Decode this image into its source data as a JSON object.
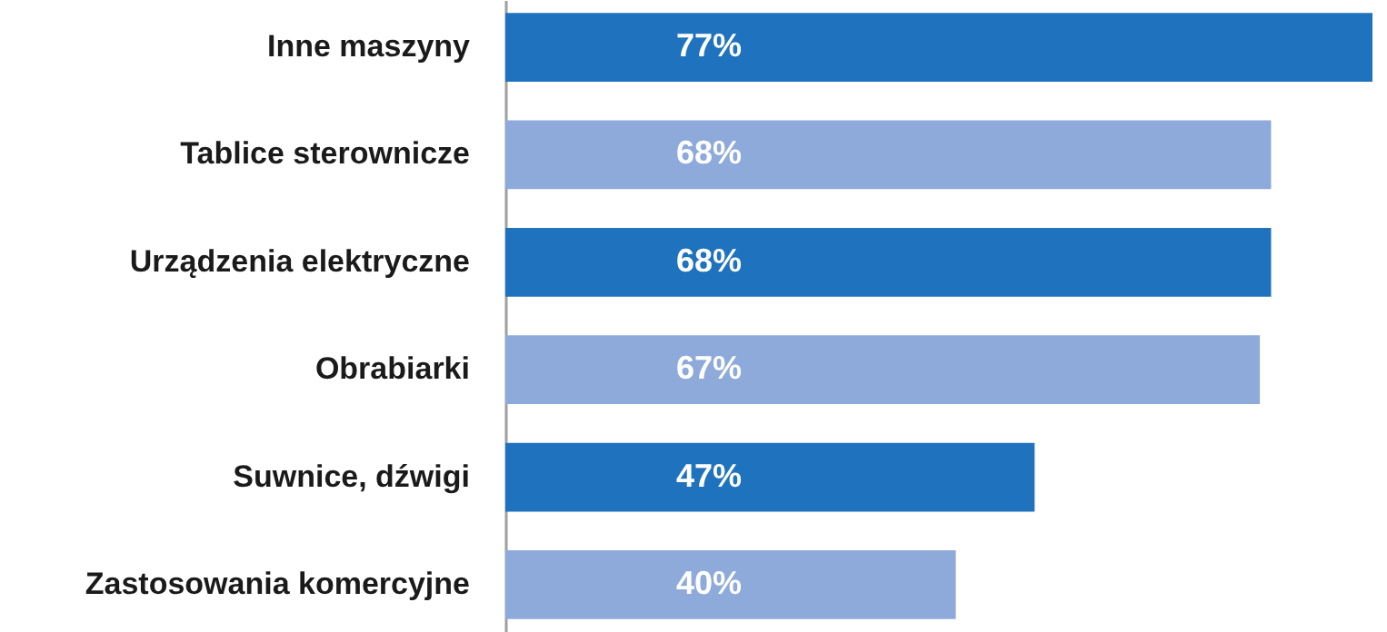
{
  "chart_data": {
    "type": "bar",
    "orientation": "horizontal",
    "categories": [
      "Inne maszyny",
      "Tablice sterownicze",
      "Urządzenia elektryczne",
      "Obrabiarki",
      "Suwnice, dźwigi",
      "Zastosowania komercyjne"
    ],
    "values": [
      77,
      68,
      68,
      67,
      47,
      40
    ],
    "colors": [
      "#1f72bd",
      "#8eaadb",
      "#1f72bd",
      "#8eaadb",
      "#1f72bd",
      "#8eaadb"
    ],
    "value_labels": [
      "77%",
      "68%",
      "68%",
      "67%",
      "47%",
      "40%"
    ]
  }
}
